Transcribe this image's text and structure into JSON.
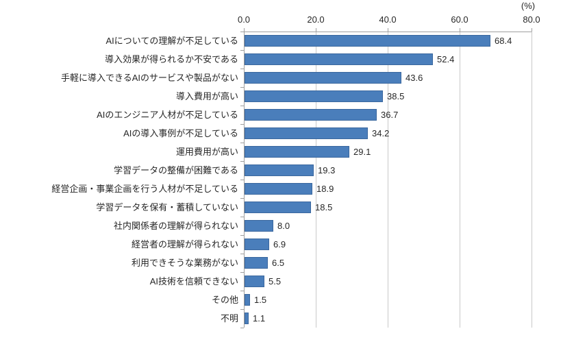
{
  "chart_data": {
    "type": "bar",
    "orientation": "horizontal",
    "title": "",
    "unit_label": "(%)",
    "categories": [
      "AIについての理解が不足している",
      "導入効果が得られるか不安である",
      "手軽に導入できるAIのサービスや製品がない",
      "導入費用が高い",
      "AIのエンジニア人材が不足している",
      "AIの導入事例が不足している",
      "運用費用が高い",
      "学習データの整備が困難である",
      "経営企画・事業企画を行う人材が不足している",
      "学習データを保有・蓄積していない",
      "社内関係者の理解が得られない",
      "経営者の理解が得られない",
      "利用できそうな業務がない",
      "AI技術を信頼できない",
      "その他",
      "不明"
    ],
    "values": [
      68.4,
      52.4,
      43.6,
      38.5,
      36.7,
      34.2,
      29.1,
      19.3,
      18.9,
      18.5,
      8.0,
      6.9,
      6.5,
      5.5,
      1.5,
      1.1
    ],
    "value_labels": [
      "68.4",
      "52.4",
      "43.6",
      "38.5",
      "36.7",
      "34.2",
      "29.1",
      "19.3",
      "18.9",
      "18.5",
      "8.0",
      "6.9",
      "6.5",
      "5.5",
      "1.5",
      "1.1"
    ],
    "xlim": [
      0,
      80
    ],
    "x_ticks": [
      "0.0",
      "20.0",
      "40.0",
      "60.0",
      "80.0"
    ],
    "x_tick_values": [
      0,
      20,
      40,
      60,
      80
    ],
    "grid": true,
    "legend": "none",
    "colors": {
      "bar_fill": "#4a7ebb",
      "bar_border": "#3a679e",
      "gridline": "#c9c9c9",
      "axis": "#9e9e9e",
      "text": "#262626"
    }
  }
}
